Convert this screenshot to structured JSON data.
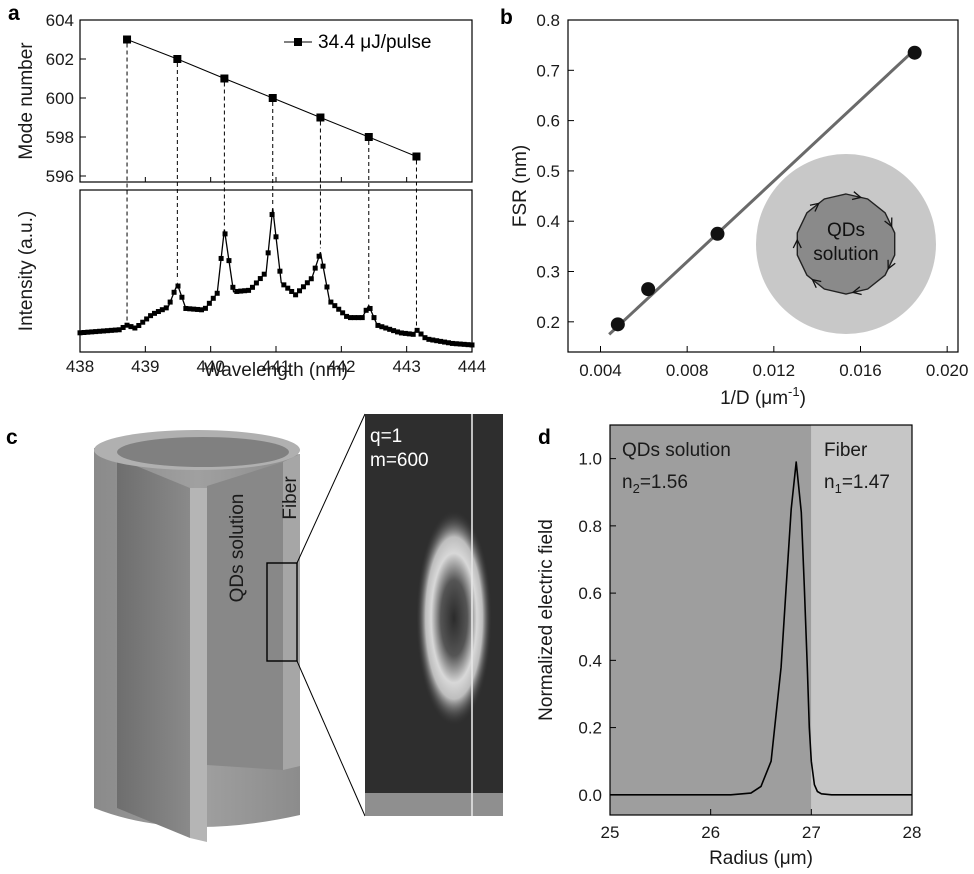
{
  "panel_labels": [
    "a",
    "b",
    "c",
    "d"
  ],
  "chart_data": [
    {
      "panel": "a",
      "type": "line",
      "ylabel": "Mode number",
      "xlim": [
        438,
        444
      ],
      "ylim": [
        596,
        604
      ],
      "yticks": [
        596,
        598,
        600,
        602,
        604
      ],
      "grid": false,
      "legend_position": "top-right",
      "series": [
        {
          "name": "34.4 μJ/pulse",
          "x": [
            438.72,
            439.49,
            440.21,
            440.95,
            441.68,
            442.42,
            443.15
          ],
          "values": [
            603,
            602,
            601,
            600,
            599,
            598,
            597
          ]
        }
      ]
    },
    {
      "panel": "a",
      "type": "line",
      "xlabel": "Wavelength (nm)",
      "ylabel": "Intensity (a.u.)",
      "xlim": [
        438,
        444
      ],
      "xticks": [
        438,
        439,
        440,
        441,
        442,
        443,
        444
      ],
      "ylim": [
        0,
        1
      ],
      "grid": false,
      "peaks": [
        438.72,
        439.49,
        440.21,
        440.95,
        441.68,
        442.42,
        443.15
      ],
      "series": [
        {
          "x": [
            438.0,
            438.3,
            438.6,
            438.72,
            438.85,
            439.1,
            439.35,
            439.49,
            439.62,
            439.9,
            440.1,
            440.21,
            440.35,
            440.6,
            440.85,
            440.95,
            441.08,
            441.3,
            441.55,
            441.68,
            441.82,
            442.1,
            442.32,
            442.42,
            442.55,
            442.9,
            443.1,
            443.15,
            443.3,
            443.7,
            444.0
          ],
          "values": [
            0.1,
            0.11,
            0.12,
            0.15,
            0.13,
            0.22,
            0.27,
            0.42,
            0.26,
            0.25,
            0.36,
            0.78,
            0.37,
            0.38,
            0.5,
            0.92,
            0.43,
            0.35,
            0.46,
            0.63,
            0.31,
            0.2,
            0.2,
            0.28,
            0.15,
            0.1,
            0.09,
            0.12,
            0.06,
            0.03,
            0.02
          ]
        }
      ]
    },
    {
      "panel": "b",
      "type": "scatter",
      "xlabel": "1/D (μm",
      "xlabel_sup": "-1",
      "xlabel_end": ")",
      "ylabel": "FSR (nm)",
      "xlim": [
        0.0025,
        0.0205
      ],
      "ylim": [
        0.14,
        0.8
      ],
      "xticks": [
        0.004,
        0.008,
        0.012,
        0.016,
        0.02
      ],
      "xtick_labels": [
        "0.004",
        "0.008",
        "0.012",
        "0.016",
        "0.020"
      ],
      "yticks": [
        0.2,
        0.3,
        0.4,
        0.5,
        0.6,
        0.7,
        0.8
      ],
      "grid": false,
      "series": [
        {
          "x": [
            0.0048,
            0.0062,
            0.0094,
            0.0185
          ],
          "values": [
            0.195,
            0.265,
            0.375,
            0.735
          ]
        }
      ],
      "fit_line": {
        "x": [
          0.0044,
          0.0186
        ],
        "values": [
          0.175,
          0.745
        ]
      },
      "inset_text": [
        "QDs",
        "solution"
      ]
    },
    {
      "panel": "d",
      "type": "line",
      "xlabel": "Radius (μm)",
      "ylabel": "Normalized electric field",
      "xlim": [
        25,
        28
      ],
      "ylim": [
        -0.06,
        1.1
      ],
      "xticks": [
        25,
        26,
        27,
        28
      ],
      "yticks": [
        0.0,
        0.2,
        0.4,
        0.6,
        0.8,
        1.0
      ],
      "ytick_labels": [
        "0.0",
        "0.2",
        "0.4",
        "0.6",
        "0.8",
        "1.0"
      ],
      "grid": false,
      "region_labels": {
        "left_title": "QDs solution",
        "left_index_prefix": "n",
        "left_index_sub": "2",
        "left_index_value": "=1.56",
        "right_title": "Fiber",
        "right_index_prefix": "n",
        "right_index_sub": "1",
        "right_index_value": "=1.47"
      },
      "boundary_x": 27.0,
      "series": [
        {
          "x": [
            25.0,
            26.2,
            26.4,
            26.5,
            26.6,
            26.7,
            26.75,
            26.8,
            26.85,
            26.9,
            26.93,
            26.96,
            26.98,
            27.0,
            27.03,
            27.06,
            27.1,
            27.2,
            28.0
          ],
          "values": [
            0.0,
            0.0,
            0.005,
            0.025,
            0.1,
            0.38,
            0.62,
            0.85,
            0.99,
            0.84,
            0.62,
            0.38,
            0.2,
            0.1,
            0.03,
            0.01,
            0.003,
            0.0,
            0.0
          ]
        }
      ]
    }
  ],
  "panel_c": {
    "vertical_labels": [
      "QDs solution",
      "Fiber"
    ],
    "mode_labels": [
      "q=1",
      "m=600"
    ]
  }
}
